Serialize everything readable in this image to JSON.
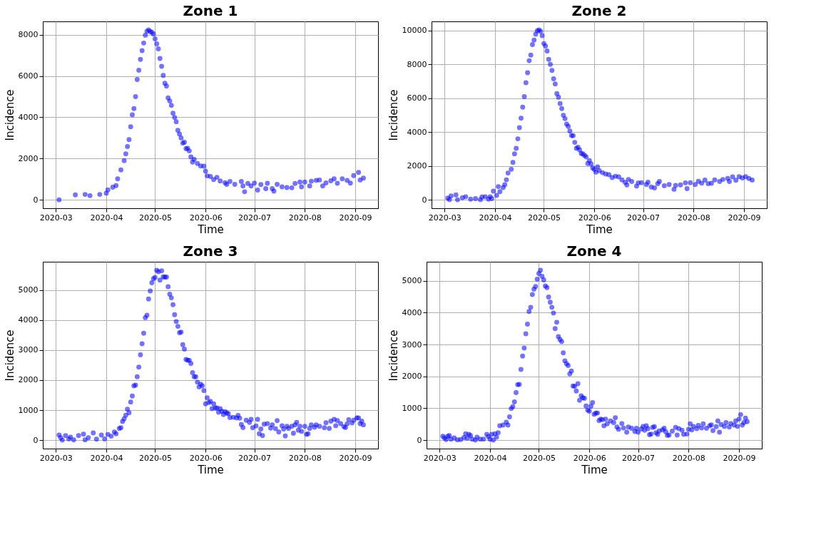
{
  "chart_data": [
    {
      "type": "scatter",
      "title": "Zone 1",
      "xlabel": "Time",
      "ylabel": "Incidence",
      "marker": "circle",
      "grid": true,
      "xlim": [
        "2020-02-22",
        "2020-09-15"
      ],
      "ylim": [
        -410,
        8650
      ],
      "xticks": [
        "2020-03",
        "2020-04",
        "2020-05",
        "2020-06",
        "2020-07",
        "2020-08",
        "2020-09"
      ],
      "yticks": [
        0,
        2000,
        4000,
        6000,
        8000
      ],
      "series": [
        {
          "color": "#0000ff",
          "x": [
            "2020-03-03",
            "2020-03-13",
            "2020-03-19",
            "2020-03-22",
            "2020-03-28",
            "2020-04-01",
            "2020-04-02",
            "2020-04-05",
            "2020-04-07",
            "2020-04-08",
            "2020-04-10",
            "2020-04-12",
            "2020-04-13",
            "2020-04-14",
            "2020-04-15",
            "2020-04-16",
            "2020-04-17",
            "2020-04-18",
            "2020-04-19",
            "2020-04-20",
            "2020-04-21",
            "2020-04-22",
            "2020-04-23",
            "2020-04-24",
            "2020-04-25",
            "2020-04-26",
            "2020-04-27",
            "2020-04-28",
            "2020-04-29",
            "2020-04-30",
            "2020-05-01",
            "2020-05-02",
            "2020-05-03",
            "2020-05-04",
            "2020-05-05",
            "2020-05-06",
            "2020-05-07",
            "2020-05-08",
            "2020-05-09",
            "2020-05-10",
            "2020-05-11",
            "2020-05-12",
            "2020-05-13",
            "2020-05-14",
            "2020-05-15",
            "2020-05-16",
            "2020-05-17",
            "2020-05-18",
            "2020-05-19",
            "2020-05-20",
            "2020-05-21",
            "2020-05-22",
            "2020-05-23",
            "2020-05-24",
            "2020-05-25",
            "2020-05-27",
            "2020-05-29",
            "2020-05-31",
            "2020-06-01",
            "2020-06-02",
            "2020-06-04",
            "2020-06-06",
            "2020-06-08",
            "2020-06-10",
            "2020-06-13",
            "2020-06-14",
            "2020-06-16",
            "2020-06-19",
            "2020-06-23",
            "2020-06-24",
            "2020-06-25",
            "2020-06-27",
            "2020-06-29",
            "2020-07-01",
            "2020-07-03",
            "2020-07-05",
            "2020-07-08",
            "2020-07-09",
            "2020-07-12",
            "2020-07-13",
            "2020-07-15",
            "2020-07-18",
            "2020-07-21",
            "2020-07-24",
            "2020-07-26",
            "2020-07-29",
            "2020-07-30",
            "2020-08-01",
            "2020-08-04",
            "2020-08-05",
            "2020-08-08",
            "2020-08-10",
            "2020-08-12",
            "2020-08-14",
            "2020-08-17",
            "2020-08-19",
            "2020-08-21",
            "2020-08-24",
            "2020-08-27",
            "2020-08-29",
            "2020-08-31",
            "2020-09-03",
            "2020-09-04",
            "2020-09-06"
          ],
          "values": [
            0,
            240,
            260,
            200,
            260,
            320,
            480,
            610,
            690,
            1020,
            1450,
            1900,
            2230,
            2580,
            2920,
            3540,
            4120,
            4420,
            5000,
            5830,
            6280,
            6810,
            7230,
            7600,
            7980,
            8170,
            8240,
            8160,
            8120,
            8040,
            7800,
            7560,
            7320,
            6850,
            6470,
            6030,
            5650,
            5510,
            4940,
            4790,
            4580,
            4200,
            3990,
            3780,
            3370,
            3190,
            3000,
            2750,
            2790,
            2480,
            2500,
            2370,
            2080,
            1830,
            1960,
            1760,
            1640,
            1630,
            1390,
            1160,
            1130,
            980,
            1090,
            910,
            830,
            750,
            890,
            750,
            890,
            670,
            390,
            790,
            670,
            810,
            470,
            740,
            540,
            800,
            540,
            420,
            750,
            630,
            590,
            580,
            790,
            860,
            630,
            860,
            670,
            900,
            940,
            960,
            670,
            820,
            920,
            1020,
            800,
            1020,
            940,
            810,
            1170,
            1330,
            960,
            1050
          ]
        }
      ]
    },
    {
      "type": "scatter",
      "title": "Zone 2",
      "xlabel": "Time",
      "ylabel": "Incidence",
      "marker": "circle",
      "grid": true,
      "xlim": [
        "2020-02-22",
        "2020-09-15"
      ],
      "ylim": [
        -490,
        10540
      ],
      "xticks": [
        "2020-03",
        "2020-04",
        "2020-05",
        "2020-06",
        "2020-07",
        "2020-08",
        "2020-09"
      ],
      "yticks": [
        0,
        2000,
        4000,
        6000,
        8000,
        10000
      ],
      "series": [
        {
          "color": "#0000ff",
          "x": [
            "2020-03-03",
            "2020-03-04",
            "2020-03-05",
            "2020-03-08",
            "2020-03-09",
            "2020-03-12",
            "2020-03-14",
            "2020-03-17",
            "2020-03-20",
            "2020-03-23",
            "2020-03-24",
            "2020-03-26",
            "2020-03-28",
            "2020-03-29",
            "2020-03-30",
            "2020-03-31",
            "2020-04-02",
            "2020-04-03",
            "2020-04-04",
            "2020-04-06",
            "2020-04-07",
            "2020-04-08",
            "2020-04-09",
            "2020-04-11",
            "2020-04-12",
            "2020-04-13",
            "2020-04-14",
            "2020-04-15",
            "2020-04-16",
            "2020-04-17",
            "2020-04-18",
            "2020-04-19",
            "2020-04-20",
            "2020-04-21",
            "2020-04-22",
            "2020-04-23",
            "2020-04-24",
            "2020-04-25",
            "2020-04-26",
            "2020-04-27",
            "2020-04-28",
            "2020-04-29",
            "2020-04-30",
            "2020-05-01",
            "2020-05-02",
            "2020-05-03",
            "2020-05-04",
            "2020-05-05",
            "2020-05-06",
            "2020-05-07",
            "2020-05-08",
            "2020-05-09",
            "2020-05-10",
            "2020-05-11",
            "2020-05-12",
            "2020-05-13",
            "2020-05-14",
            "2020-05-15",
            "2020-05-16",
            "2020-05-17",
            "2020-05-18",
            "2020-05-19",
            "2020-05-20",
            "2020-05-21",
            "2020-05-22",
            "2020-05-23",
            "2020-05-24",
            "2020-05-25",
            "2020-05-26",
            "2020-05-27",
            "2020-05-28",
            "2020-05-29",
            "2020-05-30",
            "2020-05-31",
            "2020-06-01",
            "2020-06-02",
            "2020-06-03",
            "2020-06-04",
            "2020-06-06",
            "2020-06-08",
            "2020-06-10",
            "2020-06-12",
            "2020-06-14",
            "2020-06-16",
            "2020-06-18",
            "2020-06-20",
            "2020-06-21",
            "2020-06-22",
            "2020-06-24",
            "2020-06-27",
            "2020-06-28",
            "2020-06-30",
            "2020-07-03",
            "2020-07-04",
            "2020-07-06",
            "2020-07-08",
            "2020-07-10",
            "2020-07-11",
            "2020-07-14",
            "2020-07-17",
            "2020-07-20",
            "2020-07-21",
            "2020-07-24",
            "2020-07-27",
            "2020-07-28",
            "2020-07-30",
            "2020-08-02",
            "2020-08-04",
            "2020-08-06",
            "2020-08-08",
            "2020-08-10",
            "2020-08-12",
            "2020-08-14",
            "2020-08-17",
            "2020-08-19",
            "2020-08-22",
            "2020-08-23",
            "2020-08-25",
            "2020-08-27",
            "2020-08-29",
            "2020-08-31",
            "2020-09-02",
            "2020-09-04",
            "2020-09-06"
          ],
          "values": [
            110,
            20,
            240,
            300,
            10,
            130,
            190,
            50,
            80,
            20,
            170,
            190,
            50,
            190,
            80,
            520,
            270,
            790,
            490,
            730,
            900,
            1190,
            1590,
            1810,
            2220,
            2720,
            3050,
            3610,
            4270,
            4830,
            5480,
            6100,
            6920,
            7510,
            8220,
            8550,
            9170,
            9440,
            9780,
            9980,
            10040,
            9950,
            9700,
            9230,
            9090,
            8790,
            8300,
            8000,
            7650,
            7150,
            6850,
            6280,
            6070,
            5690,
            5390,
            5000,
            4800,
            4480,
            4340,
            4070,
            3800,
            3790,
            3400,
            3050,
            3110,
            2950,
            2740,
            2720,
            2630,
            2540,
            2150,
            2320,
            2130,
            1890,
            1800,
            1640,
            1950,
            1730,
            1610,
            1530,
            1490,
            1320,
            1400,
            1360,
            1180,
            1040,
            890,
            1210,
            1090,
            820,
            1010,
            1020,
            910,
            1050,
            760,
            710,
            960,
            1090,
            840,
            910,
            630,
            860,
            890,
            1010,
            670,
            1020,
            910,
            1100,
            990,
            1170,
            960,
            980,
            1180,
            1090,
            1210,
            1270,
            1090,
            1360,
            1160,
            1370,
            1300,
            1370,
            1270,
            1170
          ]
        }
      ]
    },
    {
      "type": "scatter",
      "title": "Zone 3",
      "xlabel": "Time",
      "ylabel": "Incidence",
      "marker": "circle",
      "grid": true,
      "xlim": [
        "2020-02-22",
        "2020-09-15"
      ],
      "ylim": [
        -283,
        5943
      ],
      "xticks": [
        "2020-03",
        "2020-04",
        "2020-05",
        "2020-06",
        "2020-07",
        "2020-08",
        "2020-09"
      ],
      "yticks": [
        0,
        1000,
        2000,
        3000,
        4000,
        5000
      ],
      "series": [
        {
          "color": "#0000ff",
          "x": [
            "2020-03-03",
            "2020-03-04",
            "2020-03-05",
            "2020-03-07",
            "2020-03-09",
            "2020-03-10",
            "2020-03-12",
            "2020-03-15",
            "2020-03-18",
            "2020-03-19",
            "2020-03-21",
            "2020-03-24",
            "2020-03-26",
            "2020-03-29",
            "2020-03-31",
            "2020-04-02",
            "2020-04-04",
            "2020-04-06",
            "2020-04-07",
            "2020-04-09",
            "2020-04-10",
            "2020-04-11",
            "2020-04-12",
            "2020-04-13",
            "2020-04-14",
            "2020-04-15",
            "2020-04-16",
            "2020-04-17",
            "2020-04-18",
            "2020-04-19",
            "2020-04-20",
            "2020-04-21",
            "2020-04-22",
            "2020-04-23",
            "2020-04-24",
            "2020-04-25",
            "2020-04-26",
            "2020-04-27",
            "2020-04-28",
            "2020-04-29",
            "2020-04-30",
            "2020-05-01",
            "2020-05-02",
            "2020-05-03",
            "2020-05-04",
            "2020-05-05",
            "2020-05-06",
            "2020-05-07",
            "2020-05-08",
            "2020-05-09",
            "2020-05-10",
            "2020-05-11",
            "2020-05-12",
            "2020-05-13",
            "2020-05-14",
            "2020-05-15",
            "2020-05-16",
            "2020-05-17",
            "2020-05-18",
            "2020-05-19",
            "2020-05-20",
            "2020-05-21",
            "2020-05-22",
            "2020-05-23",
            "2020-05-24",
            "2020-05-25",
            "2020-05-26",
            "2020-05-27",
            "2020-05-28",
            "2020-05-29",
            "2020-05-30",
            "2020-05-31",
            "2020-06-01",
            "2020-06-02",
            "2020-06-03",
            "2020-06-04",
            "2020-06-05",
            "2020-06-06",
            "2020-06-07",
            "2020-06-08",
            "2020-06-09",
            "2020-06-10",
            "2020-06-11",
            "2020-06-12",
            "2020-06-13",
            "2020-06-14",
            "2020-06-15",
            "2020-06-16",
            "2020-06-18",
            "2020-06-20",
            "2020-06-21",
            "2020-06-22",
            "2020-06-23",
            "2020-06-24",
            "2020-06-26",
            "2020-06-28",
            "2020-06-29",
            "2020-06-30",
            "2020-07-02",
            "2020-07-03",
            "2020-07-04",
            "2020-07-05",
            "2020-07-06",
            "2020-07-07",
            "2020-07-09",
            "2020-07-11",
            "2020-07-12",
            "2020-07-14",
            "2020-07-15",
            "2020-07-16",
            "2020-07-18",
            "2020-07-19",
            "2020-07-20",
            "2020-07-21",
            "2020-07-22",
            "2020-07-24",
            "2020-07-25",
            "2020-07-26",
            "2020-07-27",
            "2020-07-28",
            "2020-07-29",
            "2020-07-30",
            "2020-08-01",
            "2020-08-02",
            "2020-08-03",
            "2020-08-04",
            "2020-08-05",
            "2020-08-07",
            "2020-08-08",
            "2020-08-10",
            "2020-08-13",
            "2020-08-14",
            "2020-08-16",
            "2020-08-17",
            "2020-08-19",
            "2020-08-20",
            "2020-08-21",
            "2020-08-23",
            "2020-08-25",
            "2020-08-26",
            "2020-08-27",
            "2020-08-28",
            "2020-08-30",
            "2020-08-31",
            "2020-09-02",
            "2020-09-03",
            "2020-09-04",
            "2020-09-05",
            "2020-09-06"
          ],
          "values": [
            170,
            80,
            0,
            150,
            40,
            100,
            10,
            150,
            200,
            10,
            80,
            240,
            30,
            170,
            40,
            190,
            130,
            270,
            210,
            390,
            410,
            620,
            710,
            830,
            1030,
            910,
            1270,
            1470,
            1810,
            1830,
            2110,
            2430,
            2840,
            3210,
            3560,
            4080,
            4160,
            4700,
            4970,
            5240,
            5380,
            5420,
            5660,
            5610,
            5330,
            5640,
            5440,
            5430,
            5430,
            5110,
            4860,
            4740,
            4510,
            4180,
            3950,
            3790,
            3580,
            3600,
            3180,
            3030,
            2690,
            2660,
            2660,
            2550,
            2250,
            2110,
            2110,
            1930,
            1770,
            1860,
            1810,
            1650,
            1210,
            1410,
            1250,
            1290,
            1050,
            1210,
            1070,
            1070,
            930,
            1050,
            960,
            850,
            950,
            900,
            880,
            750,
            760,
            740,
            820,
            730,
            520,
            420,
            660,
            590,
            690,
            410,
            470,
            690,
            210,
            370,
            150,
            530,
            550,
            400,
            510,
            380,
            650,
            270,
            480,
            370,
            140,
            460,
            390,
            460,
            230,
            510,
            590,
            330,
            460,
            290,
            460,
            190,
            210,
            390,
            510,
            430,
            510,
            460,
            410,
            580,
            390,
            630,
            690,
            480,
            650,
            550,
            450,
            420,
            540,
            680,
            570,
            660,
            740,
            740,
            550,
            630,
            510
          ]
        }
      ]
    },
    {
      "type": "scatter",
      "title": "Zone 4",
      "xlabel": "Time",
      "ylabel": "Incidence",
      "marker": "circle",
      "grid": true,
      "xlim": [
        "2020-02-22",
        "2020-09-15"
      ],
      "ylim": [
        -267,
        5600
      ],
      "xticks": [
        "2020-03",
        "2020-04",
        "2020-05",
        "2020-06",
        "2020-07",
        "2020-08",
        "2020-09"
      ],
      "yticks": [
        0,
        1000,
        2000,
        3000,
        4000,
        5000
      ],
      "series": [
        {
          "color": "#0000ff",
          "x": [
            "2020-03-03",
            "2020-03-04",
            "2020-03-05",
            "2020-03-06",
            "2020-03-07",
            "2020-03-08",
            "2020-03-10",
            "2020-03-12",
            "2020-03-14",
            "2020-03-16",
            "2020-03-17",
            "2020-03-18",
            "2020-03-19",
            "2020-03-20",
            "2020-03-21",
            "2020-03-23",
            "2020-03-24",
            "2020-03-26",
            "2020-03-28",
            "2020-03-30",
            "2020-03-31",
            "2020-04-01",
            "2020-04-02",
            "2020-04-03",
            "2020-04-04",
            "2020-04-05",
            "2020-04-06",
            "2020-04-07",
            "2020-04-09",
            "2020-04-11",
            "2020-04-12",
            "2020-04-13",
            "2020-04-14",
            "2020-04-15",
            "2020-04-16",
            "2020-04-17",
            "2020-04-18",
            "2020-04-19",
            "2020-04-20",
            "2020-04-21",
            "2020-04-22",
            "2020-04-23",
            "2020-04-24",
            "2020-04-25",
            "2020-04-26",
            "2020-04-27",
            "2020-04-28",
            "2020-04-29",
            "2020-04-30",
            "2020-05-01",
            "2020-05-02",
            "2020-05-03",
            "2020-05-04",
            "2020-05-05",
            "2020-05-06",
            "2020-05-07",
            "2020-05-08",
            "2020-05-09",
            "2020-05-10",
            "2020-05-11",
            "2020-05-12",
            "2020-05-13",
            "2020-05-14",
            "2020-05-15",
            "2020-05-16",
            "2020-05-17",
            "2020-05-18",
            "2020-05-19",
            "2020-05-20",
            "2020-05-21",
            "2020-05-22",
            "2020-05-23",
            "2020-05-24",
            "2020-05-25",
            "2020-05-26",
            "2020-05-27",
            "2020-05-28",
            "2020-05-29",
            "2020-05-30",
            "2020-05-31",
            "2020-06-01",
            "2020-06-02",
            "2020-06-03",
            "2020-06-04",
            "2020-06-05",
            "2020-06-06",
            "2020-06-07",
            "2020-06-08",
            "2020-06-09",
            "2020-06-10",
            "2020-06-11",
            "2020-06-12",
            "2020-06-14",
            "2020-06-16",
            "2020-06-17",
            "2020-06-18",
            "2020-06-19",
            "2020-06-21",
            "2020-06-22",
            "2020-06-24",
            "2020-06-25",
            "2020-06-27",
            "2020-06-29",
            "2020-06-30",
            "2020-07-01",
            "2020-07-03",
            "2020-07-04",
            "2020-07-05",
            "2020-07-06",
            "2020-07-07",
            "2020-07-08",
            "2020-07-09",
            "2020-07-10",
            "2020-07-11",
            "2020-07-12",
            "2020-07-13",
            "2020-07-14",
            "2020-07-16",
            "2020-07-17",
            "2020-07-18",
            "2020-07-19",
            "2020-07-20",
            "2020-07-22",
            "2020-07-24",
            "2020-07-25",
            "2020-07-26",
            "2020-07-28",
            "2020-07-29",
            "2020-07-31",
            "2020-08-01",
            "2020-08-02",
            "2020-08-03",
            "2020-08-04",
            "2020-08-06",
            "2020-08-07",
            "2020-08-09",
            "2020-08-10",
            "2020-08-12",
            "2020-08-14",
            "2020-08-15",
            "2020-08-16",
            "2020-08-18",
            "2020-08-19",
            "2020-08-20",
            "2020-08-21",
            "2020-08-23",
            "2020-08-24",
            "2020-08-26",
            "2020-08-27",
            "2020-08-29",
            "2020-08-30",
            "2020-08-31",
            "2020-09-01",
            "2020-09-02",
            "2020-09-03",
            "2020-09-04",
            "2020-09-05",
            "2020-09-06"
          ],
          "values": [
            120,
            70,
            20,
            120,
            140,
            30,
            70,
            10,
            20,
            80,
            200,
            60,
            180,
            140,
            30,
            0,
            90,
            30,
            30,
            180,
            110,
            30,
            180,
            0,
            200,
            90,
            230,
            450,
            470,
            560,
            470,
            730,
            990,
            1050,
            1200,
            1490,
            1740,
            1750,
            2220,
            2640,
            2890,
            3340,
            3640,
            4040,
            4170,
            4570,
            4740,
            4820,
            5050,
            5230,
            5330,
            5140,
            5030,
            4840,
            4790,
            4490,
            4330,
            4170,
            3990,
            3500,
            3700,
            3250,
            3160,
            3090,
            2740,
            2490,
            2400,
            2340,
            2080,
            2170,
            1700,
            1690,
            1540,
            1770,
            1250,
            1390,
            1330,
            1310,
            1070,
            940,
            910,
            1060,
            1180,
            810,
            850,
            850,
            610,
            660,
            640,
            450,
            660,
            510,
            600,
            550,
            700,
            410,
            340,
            520,
            380,
            250,
            410,
            370,
            270,
            370,
            250,
            350,
            430,
            310,
            450,
            360,
            170,
            190,
            400,
            420,
            230,
            180,
            290,
            320,
            370,
            260,
            150,
            160,
            280,
            400,
            160,
            360,
            310,
            180,
            190,
            340,
            510,
            320,
            430,
            360,
            460,
            380,
            510,
            370,
            450,
            480,
            300,
            420,
            600,
            250,
            490,
            430,
            550,
            410,
            520,
            470,
            600,
            430,
            660,
            800,
            470,
            550,
            690,
            580
          ]
        }
      ]
    }
  ]
}
